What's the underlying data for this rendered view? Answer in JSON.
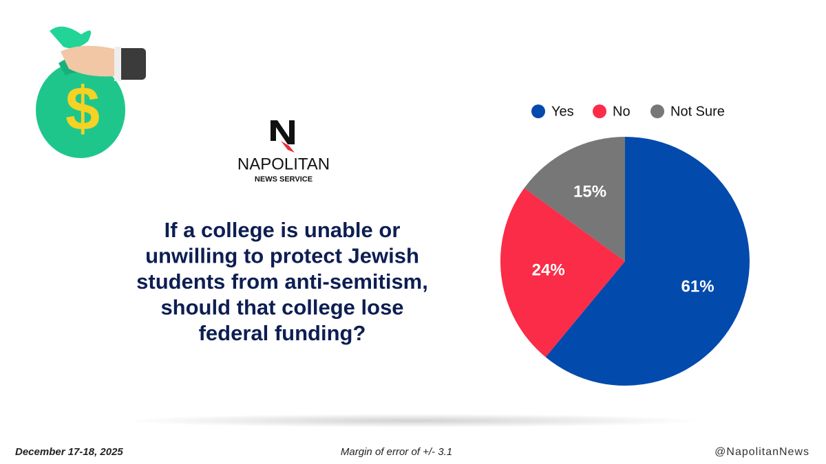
{
  "chart_data": {
    "type": "pie",
    "categories": [
      "Yes",
      "No",
      "Not Sure"
    ],
    "values": [
      61,
      24,
      15
    ],
    "value_labels": [
      "61%",
      "24%",
      "15%"
    ],
    "colors": [
      "#034aad",
      "#fa2c47",
      "#777777"
    ],
    "start_angle": 0,
    "direction": "clockwise",
    "legend": "top"
  },
  "logo": {
    "name": "NAPOLITAN",
    "subtitle": "NEWS SERVICE"
  },
  "question": [
    "If a college is unable or",
    "unwilling to protect Jewish",
    "students from anti-semitism,",
    "should that college lose",
    "federal funding?"
  ],
  "footer": {
    "date": "December 17-18, 2025",
    "margin": "Margin of error of +/- 3.1",
    "handle": "@NapolitanNews"
  }
}
